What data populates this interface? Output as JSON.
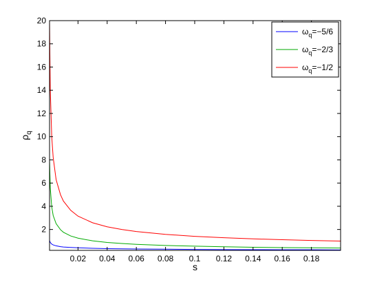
{
  "chart_data": {
    "type": "line",
    "title": "",
    "xlabel": "s",
    "ylabel": {
      "base": "ρ",
      "sub": "q"
    },
    "xlim": [
      0.0005,
      0.2
    ],
    "ylim": [
      0.2,
      20
    ],
    "grid": false,
    "legend_position": "top-right",
    "x_ticks": [
      0.02,
      0.04,
      0.06,
      0.08,
      0.1,
      0.12,
      0.14,
      0.16,
      0.18
    ],
    "x_tick_labels": [
      "0.02",
      "0.04",
      "0.06",
      "0.08",
      "0.1",
      "0.12",
      "0.14",
      "0.16",
      "0.18"
    ],
    "y_ticks": [
      2,
      4,
      6,
      8,
      10,
      12,
      14,
      16,
      18,
      20
    ],
    "y_tick_labels": [
      "2",
      "4",
      "6",
      "8",
      "10",
      "12",
      "14",
      "16",
      "18",
      "20"
    ],
    "series": [
      {
        "name": "ω_q=−5/6",
        "label_base": "ω",
        "label_sub": "q",
        "label_rest": "=−5/6",
        "color": "#0000ff",
        "x": [
          0.0005,
          0.001,
          0.002,
          0.003,
          0.005,
          0.008,
          0.01,
          0.015,
          0.02,
          0.03,
          0.04,
          0.05,
          0.06,
          0.08,
          0.1,
          0.12,
          0.14,
          0.16,
          0.18,
          0.2
        ],
        "y": [
          1.05,
          0.88,
          0.74,
          0.67,
          0.59,
          0.52,
          0.49,
          0.45,
          0.42,
          0.38,
          0.35,
          0.33,
          0.32,
          0.3,
          0.28,
          0.27,
          0.26,
          0.25,
          0.25,
          0.24
        ]
      },
      {
        "name": "ω_q=−2/3",
        "label_base": "ω",
        "label_sub": "q",
        "label_rest": "=−2/3",
        "color": "#00aa00",
        "x": [
          0.0005,
          0.001,
          0.002,
          0.003,
          0.005,
          0.008,
          0.01,
          0.015,
          0.02,
          0.03,
          0.04,
          0.05,
          0.06,
          0.08,
          0.1,
          0.12,
          0.14,
          0.16,
          0.18,
          0.2
        ],
        "y": [
          8.0,
          5.6,
          3.95,
          3.2,
          2.5,
          1.98,
          1.76,
          1.44,
          1.25,
          1.02,
          0.88,
          0.79,
          0.72,
          0.62,
          0.56,
          0.51,
          0.47,
          0.44,
          0.42,
          0.4
        ]
      },
      {
        "name": "ω_q=−1/2",
        "label_base": "ω",
        "label_sub": "q",
        "label_rest": "=−1/2",
        "color": "#ff0000",
        "x": [
          0.0005,
          0.001,
          0.002,
          0.003,
          0.005,
          0.008,
          0.01,
          0.015,
          0.02,
          0.03,
          0.04,
          0.05,
          0.06,
          0.08,
          0.1,
          0.12,
          0.14,
          0.16,
          0.18,
          0.2
        ],
        "y": [
          20.0,
          14.1,
          10.0,
          8.2,
          6.3,
          5.0,
          4.45,
          3.65,
          3.15,
          2.58,
          2.23,
          2.0,
          1.82,
          1.58,
          1.41,
          1.29,
          1.19,
          1.12,
          1.05,
          1.0
        ]
      }
    ]
  }
}
